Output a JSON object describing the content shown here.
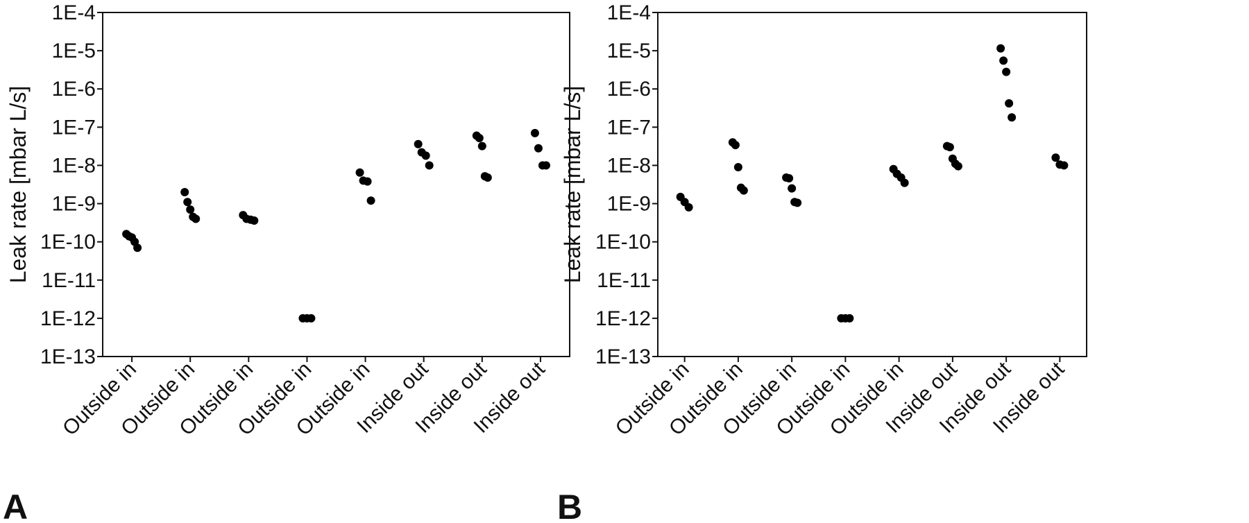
{
  "chart_data": [
    {
      "type": "scatter",
      "panel_label": "A",
      "ylabel": "Leak rate [mbar L/s]",
      "yscale": "log",
      "ylim": [
        1e-13,
        0.0001
      ],
      "yticks": [
        "1E-13",
        "1E-12",
        "1E-11",
        "1E-10",
        "1E-9",
        "1E-8",
        "1E-7",
        "1E-6",
        "1E-5",
        "1E-4"
      ],
      "categories": [
        "Outside in",
        "Outside in",
        "Outside in",
        "Outside in",
        "Outside in",
        "Inside out",
        "Inside out",
        "Inside out"
      ],
      "grid": false,
      "groups": [
        [
          1.6e-10,
          1.4e-10,
          1.3e-10,
          1e-10,
          7e-11
        ],
        [
          2e-09,
          1.1e-09,
          7e-10,
          4.5e-10,
          4e-10
        ],
        [
          5e-10,
          4e-10,
          3.8e-10,
          3.6e-10
        ],
        [
          1e-12,
          1e-12,
          1e-12
        ],
        [
          6.5e-09,
          4e-09,
          3.8e-09,
          1.2e-09
        ],
        [
          3.6e-08,
          2.2e-08,
          1.8e-08,
          1e-08
        ],
        [
          6e-08,
          5.2e-08,
          3.2e-08,
          5.2e-09,
          4.8e-09
        ],
        [
          7e-08,
          2.8e-08,
          1e-08,
          1e-08
        ]
      ]
    },
    {
      "type": "scatter",
      "panel_label": "B",
      "ylabel": "Leak rate [mbar L/s]",
      "yscale": "log",
      "ylim": [
        1e-13,
        0.0001
      ],
      "yticks": [
        "1E-13",
        "1E-12",
        "1E-11",
        "1E-10",
        "1E-9",
        "1E-8",
        "1E-7",
        "1E-6",
        "1E-5",
        "1E-4"
      ],
      "categories": [
        "Outside in",
        "Outside in",
        "Outside in",
        "Outside in",
        "Outside in",
        "Inside out",
        "Inside out",
        "Inside out"
      ],
      "grid": false,
      "groups": [
        [
          1.5e-09,
          1.1e-09,
          8e-10
        ],
        [
          4e-08,
          3.4e-08,
          9e-09,
          2.6e-09,
          2.2e-09
        ],
        [
          4.8e-09,
          4.6e-09,
          2.5e-09,
          1.1e-09,
          1.05e-09
        ],
        [
          1e-12,
          1e-12,
          1e-12
        ],
        [
          8e-09,
          6e-09,
          4.8e-09,
          3.5e-09
        ],
        [
          3.2e-08,
          3e-08,
          1.5e-08,
          1.1e-08,
          9.5e-09
        ],
        [
          1.15e-05,
          5.5e-06,
          2.8e-06,
          4.2e-07,
          1.8e-07
        ],
        [
          1.6e-08,
          1.05e-08,
          1e-08
        ]
      ]
    }
  ]
}
